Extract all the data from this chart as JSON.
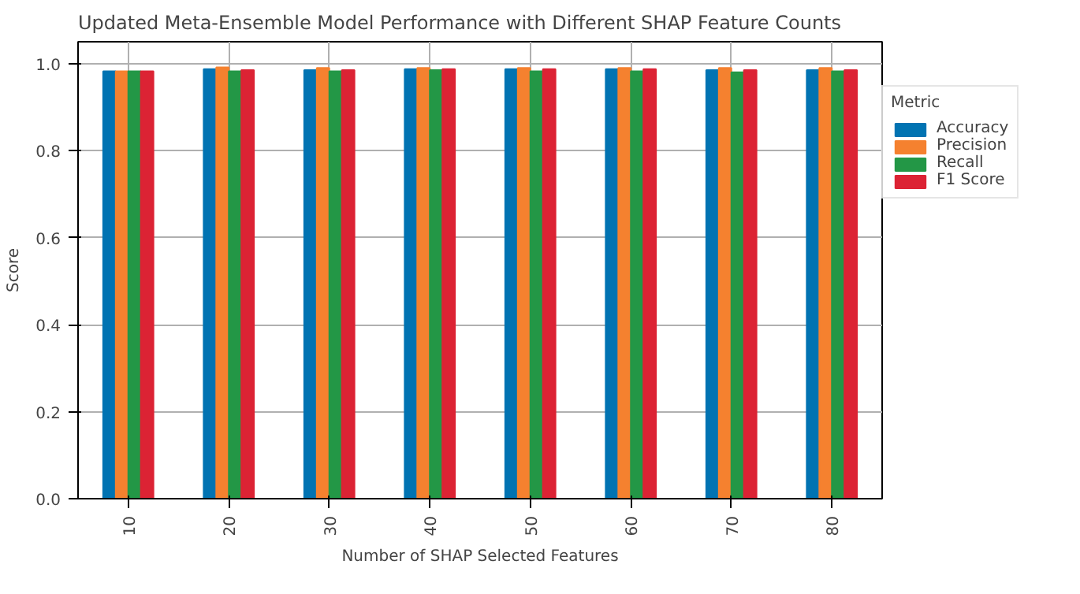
{
  "chart_data": {
    "type": "bar",
    "title": "Updated Meta-Ensemble Model Performance with Different SHAP Feature Counts",
    "xlabel": "Number of SHAP Selected Features",
    "ylabel": "Score",
    "legend_title": "Metric",
    "categories": [
      "10",
      "20",
      "30",
      "40",
      "50",
      "60",
      "70",
      "80"
    ],
    "series": [
      {
        "name": "Accuracy",
        "color": "#0173b2",
        "values": [
          0.982,
          0.987,
          0.985,
          0.987,
          0.987,
          0.987,
          0.985,
          0.985
        ]
      },
      {
        "name": "Precision",
        "color": "#f5812f",
        "values": [
          0.982,
          0.991,
          0.99,
          0.99,
          0.99,
          0.99,
          0.99,
          0.99
        ]
      },
      {
        "name": "Recall",
        "color": "#239746",
        "values": [
          0.982,
          0.982,
          0.982,
          0.985,
          0.982,
          0.982,
          0.98,
          0.982
        ]
      },
      {
        "name": "F1 Score",
        "color": "#dc2334",
        "values": [
          0.982,
          0.985,
          0.985,
          0.987,
          0.987,
          0.987,
          0.985,
          0.985
        ]
      }
    ],
    "ylim": [
      0,
      1.05
    ],
    "yticks": [
      {
        "value": 0,
        "label": "0.0"
      },
      0.2,
      0.4,
      0.6,
      0.8,
      {
        "value": 1,
        "label": "1.0"
      }
    ],
    "grid": true,
    "legend": "top right"
  }
}
